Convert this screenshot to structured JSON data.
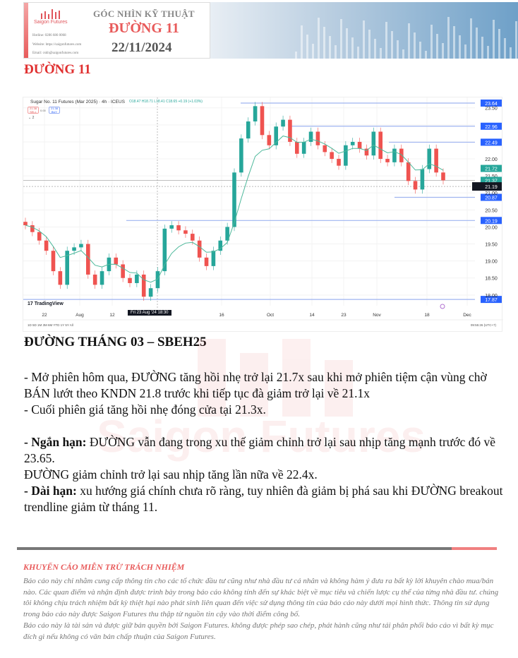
{
  "banner": {
    "logo_text": "Saigon Futures",
    "hotline": "Hotline: 0286 686 0068",
    "website": "Website: https://saigonfutures.com",
    "email": "Email: cskh@saigonfutures.com",
    "title": "GÓC NHÌN KỸ THUẬT",
    "subtitle": "ĐƯỜNG 11",
    "date": "22/11/2024"
  },
  "heading": "ĐƯỜNG 11",
  "chart_data": {
    "type": "candlestick",
    "title": "Sugar No. 11 Futures (Mar 2025) · 4h · ICEUS",
    "ohlc_label": "O18.47 H18.71 L18.41 C18.65 +0.19 (+1.03%)",
    "sell": {
      "price": "21.38",
      "label": "SELL"
    },
    "buy": {
      "price": "21.38",
      "label": "BUY"
    },
    "spread": "0.00",
    "indicator_count": "2",
    "ylim": [
      17.7,
      23.75
    ],
    "y_ticks": [
      "23.50",
      "22.00",
      "21.50",
      "21.00",
      "20.50",
      "20.00",
      "19.50",
      "19.00",
      "18.50",
      "18.00"
    ],
    "x_ticks": [
      "22",
      "Aug",
      "12",
      "16",
      "Oct",
      "14",
      "23",
      "Nov",
      "18",
      "Dec"
    ],
    "crosshair_label": "Fri 23 Aug '24  18:30",
    "levels": [
      23.64,
      22.96,
      22.49,
      20.87,
      20.19,
      17.87
    ],
    "ma_value": "21.72",
    "last_price": "21.37",
    "crosshair_price": "21.19",
    "closes": [
      20.05,
      19.85,
      19.6,
      19.3,
      18.7,
      18.3,
      19.3,
      19.4,
      19.5,
      18.6,
      18.3,
      18.7,
      19.1,
      18.9,
      18.5,
      18.35,
      18.6,
      17.95,
      18.2,
      18.7,
      19.95,
      20.05,
      19.9,
      19.8,
      19.6,
      19.1,
      18.85,
      19.3,
      19.6,
      20.0,
      21.6,
      22.6,
      23.1,
      23.55,
      22.7,
      22.4,
      22.95,
      23.15,
      22.5,
      22.15,
      22.5,
      22.8,
      22.4,
      22.2,
      22.0,
      21.8,
      22.4,
      22.5,
      22.3,
      22.1,
      22.8,
      22.0,
      21.9,
      22.3,
      21.9,
      21.35,
      21.1,
      21.7,
      22.3,
      21.6,
      21.37
    ],
    "range_buttons": "1D 5D 1M 3M 6M YTD 1Y 5Y All",
    "clock": "09:55:26 (UTC+7)",
    "brand": "TradingView",
    "colors": {
      "up": "#26a69a",
      "down": "#ef5350",
      "ma": "#4cb89a",
      "level": "#2962ff"
    }
  },
  "section_title": "ĐƯỜNG THÁNG 03 – SBEH25",
  "paragraphs": {
    "p1": "- Mở phiên hôm qua, ĐƯỜNG tăng hồi nhẹ trở lại 21.7x sau khi mở phiên tiệm cận vùng chờ BÁN lướt theo KNDN 21.8 trước khi tiếp tục đà giảm trở lại về 21.1x",
    "p2": "- Cuối phiên giá tăng hồi nhẹ đóng cửa tại 21.3x.",
    "p3_label": "- Ngắn hạn:",
    "p3": " ĐƯỜNG vẫn đang trong xu thế giảm chỉnh trở lại sau nhịp tăng mạnh trước đó về 23.65.",
    "p4": "ĐƯỜNG giảm chỉnh trở lại sau nhịp tăng lần nữa về 22.4x.",
    "p5_label": "- Dài hạn:",
    "p5": " xu hướng giá chính chưa rõ ràng, tuy nhiên đà giảm bị phá sau khi ĐƯỜNG breakout trendline giảm từ tháng 11."
  },
  "watermark": "Saigon Futures",
  "disclaimer": {
    "title": "KHUYẾN CÁO MIỄN TRỪ TRÁCH NHIỆM",
    "p1": "Báo cáo này chỉ nhằm cung cấp thông tin cho các tổ chức đầu tư cũng như nhà đầu tư cá nhân và không hàm ý đưa ra bất kỳ lời khuyên chào mua/bán nào. Các quan điểm và nhận định được trình bày trong báo cáo không tính đến sự khác biệt về mục tiêu và chiến lược cụ thể của từng nhà đầu tư. chúng tôi không chịu trách nhiệm bất kỳ thiệt hại nào phát sinh liên quan đến việc sử dụng thông tin của báo cáo này dưới mọi hình thức. Thông tin sử dụng trong báo cáo này được Saigon Futures thu thập từ nguồn tin cậy vào thời điểm công bố.",
    "p2": "Báo cáo này là tài sản và được giữ bản quyền bởi Saigon Futures. không được phép sao chép, phát hành cũng như tái phân phối báo cáo vì bất kỳ mục đích gì nếu không có văn bản chấp thuận của Saigon Futures."
  }
}
